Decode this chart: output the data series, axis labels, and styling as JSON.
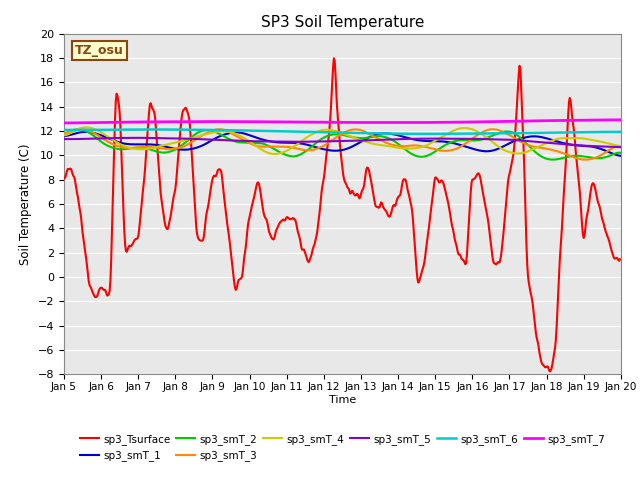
{
  "title": "SP3 Soil Temperature",
  "ylabel": "Soil Temperature (C)",
  "xlabel": "Time",
  "annotation_text": "TZ_osu",
  "annotation_color": "#8B4513",
  "annotation_bg": "#FFFFCC",
  "plot_bg": "#E8E8E8",
  "ylim": [
    -8,
    20
  ],
  "yticks": [
    -8,
    -6,
    -4,
    -2,
    0,
    2,
    4,
    6,
    8,
    10,
    12,
    14,
    16,
    18,
    20
  ],
  "n_points": 720,
  "series_colors": {
    "sp3_Tsurface": "#FF0000",
    "sp3_smT_1": "#0000CC",
    "sp3_smT_2": "#00CC00",
    "sp3_smT_3": "#FF8800",
    "sp3_smT_4": "#CCCC00",
    "sp3_smT_5": "#8800CC",
    "sp3_smT_6": "#00CCCC",
    "sp3_smT_7": "#FF00FF"
  },
  "xtick_labels": [
    "Jan 5",
    "Jan 6",
    "Jan 7",
    "Jan 8",
    "Jan 9",
    "Jan 10",
    "Jan 11",
    "Jan 12",
    "Jan 13",
    "Jan 14",
    "Jan 15",
    "Jan 16",
    "Jan 17",
    "Jan 18",
    "Jan 19",
    "Jan 20"
  ],
  "xtick_positions": [
    0,
    48,
    96,
    144,
    192,
    240,
    288,
    336,
    384,
    432,
    480,
    528,
    576,
    624,
    672,
    720
  ]
}
